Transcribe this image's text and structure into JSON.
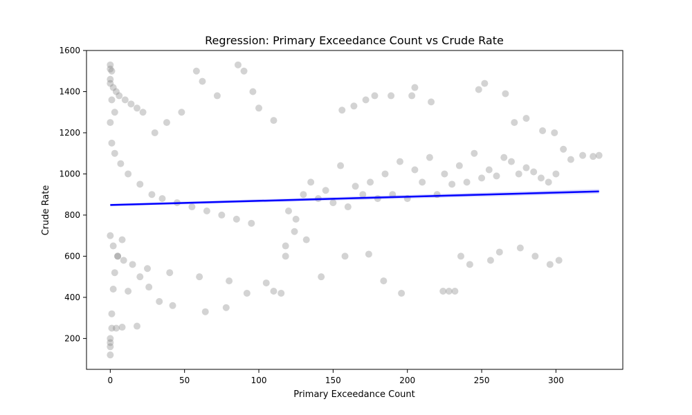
{
  "chart_data": {
    "type": "scatter",
    "title": "Regression: Primary Exceedance Count vs Crude Rate",
    "xlabel": "Primary Exceedance Count",
    "ylabel": "Crude Rate",
    "xlim": [
      -16,
      345
    ],
    "ylim": [
      50,
      1600
    ],
    "xticks": [
      0,
      50,
      100,
      150,
      200,
      250,
      300
    ],
    "yticks": [
      200,
      400,
      600,
      800,
      1000,
      1200,
      1400,
      1600
    ],
    "grid": false,
    "legend": "none",
    "point_color": "#808080",
    "point_opacity": 0.35,
    "line_color": "#0000ff",
    "ci_color": "#0000ff",
    "regression_line": {
      "x": [
        0,
        329
      ],
      "y": [
        849,
        915
      ]
    },
    "ci_band": {
      "x": [
        0,
        329
      ],
      "lower": [
        843,
        904
      ],
      "upper": [
        855,
        926
      ]
    },
    "points": {
      "x": [
        0,
        0,
        0,
        0,
        1,
        1,
        2,
        3,
        5,
        8,
        0,
        1,
        0,
        2,
        4,
        6,
        10,
        14,
        18,
        22,
        0,
        1,
        3,
        7,
        12,
        20,
        28,
        35,
        45,
        55,
        65,
        75,
        85,
        95,
        0,
        2,
        5,
        9,
        15,
        25,
        40,
        60,
        80,
        105,
        110,
        115,
        118,
        120,
        125,
        130,
        135,
        140,
        145,
        150,
        155,
        160,
        165,
        170,
        175,
        180,
        185,
        190,
        195,
        200,
        205,
        210,
        215,
        220,
        225,
        230,
        235,
        240,
        245,
        250,
        255,
        260,
        265,
        270,
        275,
        280,
        285,
        290,
        295,
        300,
        305,
        310,
        318,
        325,
        329,
        205,
        203,
        216,
        224,
        228,
        232,
        189,
        178,
        172,
        164,
        156,
        248,
        252,
        266,
        272,
        280,
        291,
        299,
        118,
        124,
        132,
        142,
        158,
        174,
        184,
        196,
        236,
        242,
        256,
        262,
        276,
        286,
        296,
        302,
        58,
        62,
        72,
        48,
        38,
        30,
        18,
        8,
        4,
        86,
        90,
        96,
        100,
        110,
        12,
        20,
        26,
        33,
        42,
        64,
        78,
        92,
        0,
        0,
        1,
        3
      ],
      "y": [
        120,
        160,
        180,
        200,
        250,
        320,
        440,
        520,
        600,
        680,
        1530,
        1500,
        1460,
        1420,
        1400,
        1380,
        1360,
        1340,
        1320,
        1300,
        1250,
        1150,
        1100,
        1050,
        1000,
        950,
        900,
        880,
        860,
        840,
        820,
        800,
        780,
        760,
        700,
        650,
        600,
        580,
        560,
        540,
        520,
        500,
        480,
        470,
        430,
        420,
        600,
        820,
        780,
        900,
        960,
        880,
        920,
        860,
        1040,
        840,
        940,
        900,
        960,
        880,
        1000,
        900,
        1060,
        880,
        1020,
        960,
        1080,
        900,
        1000,
        950,
        1040,
        960,
        1100,
        980,
        1020,
        990,
        1080,
        1060,
        1000,
        1030,
        1010,
        980,
        960,
        1000,
        1120,
        1070,
        1090,
        1085,
        1090,
        1420,
        1380,
        1350,
        430,
        430,
        430,
        1380,
        1380,
        1360,
        1330,
        1310,
        1410,
        1440,
        1390,
        1250,
        1270,
        1210,
        1200,
        650,
        720,
        680,
        500,
        600,
        610,
        480,
        420,
        600,
        560,
        580,
        620,
        640,
        600,
        560,
        580,
        1500,
        1450,
        1380,
        1300,
        1250,
        1200,
        260,
        255,
        250,
        1530,
        1500,
        1400,
        1320,
        1260,
        430,
        500,
        450,
        380,
        360,
        330,
        350,
        420,
        1510,
        1440,
        1360,
        1300
      ]
    }
  }
}
